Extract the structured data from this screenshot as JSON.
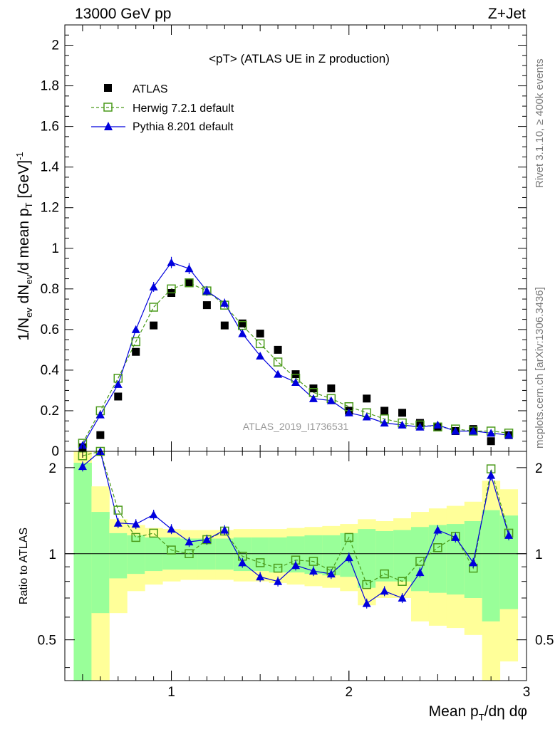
{
  "header": {
    "left": "13000 GeV pp",
    "right": "Z+Jet"
  },
  "side_labels": {
    "rivet": "Rivet 3.1.10, ≥ 400k events",
    "mcplots": "mcplots.cern.ch [arXiv:1306.3436]"
  },
  "chart_data": [
    {
      "type": "scatter",
      "title": "<pT> (ATLAS UE in Z production)",
      "watermark": "ATLAS_2019_I1736531",
      "ylabel_parts": [
        "1/N",
        "ev",
        " dN",
        "ev",
        "/d mean p",
        "T",
        " [GeV]",
        "-1"
      ],
      "xlim": [
        0.4,
        3.0
      ],
      "ylim": [
        0,
        2.1
      ],
      "yticks": [
        0,
        0.2,
        0.4,
        0.6,
        0.8,
        1,
        1.2,
        1.4,
        1.6,
        1.8,
        2
      ],
      "ytick_labels": [
        "0",
        "0.2",
        "0.4",
        "0.6",
        "0.8",
        "1",
        "1.2",
        "1.4",
        "1.6",
        "1.8",
        "2"
      ],
      "legend_position": "top-left",
      "series": [
        {
          "name": "ATLAS",
          "style": "square-filled",
          "color": "#000000",
          "x": [
            0.5,
            0.6,
            0.7,
            0.8,
            0.9,
            1.0,
            1.1,
            1.2,
            1.3,
            1.4,
            1.5,
            1.6,
            1.7,
            1.8,
            1.9,
            2.0,
            2.1,
            2.2,
            2.3,
            2.4,
            2.5,
            2.6,
            2.7,
            2.8,
            2.9
          ],
          "y": [
            0.02,
            0.08,
            0.27,
            0.49,
            0.62,
            0.78,
            0.83,
            0.72,
            0.62,
            0.63,
            0.58,
            0.5,
            0.38,
            0.31,
            0.31,
            0.2,
            0.26,
            0.2,
            0.19,
            0.14,
            0.12,
            0.1,
            0.11,
            0.05,
            0.08
          ]
        },
        {
          "name": "Herwig 7.2.1 default",
          "style": "square-open-dashed",
          "color": "#4a9a1a",
          "x": [
            0.5,
            0.6,
            0.7,
            0.8,
            0.9,
            1.0,
            1.1,
            1.2,
            1.3,
            1.4,
            1.5,
            1.6,
            1.7,
            1.8,
            1.9,
            2.0,
            2.1,
            2.2,
            2.3,
            2.4,
            2.5,
            2.6,
            2.7,
            2.8,
            2.9
          ],
          "y": [
            0.04,
            0.2,
            0.36,
            0.54,
            0.71,
            0.8,
            0.83,
            0.79,
            0.72,
            0.62,
            0.53,
            0.44,
            0.36,
            0.29,
            0.26,
            0.22,
            0.19,
            0.16,
            0.14,
            0.13,
            0.12,
            0.11,
            0.1,
            0.1,
            0.09
          ]
        },
        {
          "name": "Pythia 8.201 default",
          "style": "triangle-filled-solid",
          "color": "#0000dd",
          "x": [
            0.5,
            0.6,
            0.7,
            0.8,
            0.9,
            1.0,
            1.1,
            1.2,
            1.3,
            1.4,
            1.5,
            1.6,
            1.7,
            1.8,
            1.9,
            2.0,
            2.1,
            2.2,
            2.3,
            2.4,
            2.5,
            2.6,
            2.7,
            2.8,
            2.9
          ],
          "y": [
            0.03,
            0.18,
            0.33,
            0.6,
            0.81,
            0.93,
            0.9,
            0.79,
            0.73,
            0.58,
            0.47,
            0.38,
            0.34,
            0.26,
            0.25,
            0.19,
            0.17,
            0.14,
            0.13,
            0.12,
            0.13,
            0.1,
            0.1,
            0.09,
            0.08
          ]
        }
      ]
    },
    {
      "type": "scatter",
      "ylabel": "Ratio to ATLAS",
      "xlabel_parts": [
        "Mean p",
        "T",
        "/dη dφ"
      ],
      "xlim": [
        0.4,
        3.0
      ],
      "ylim": [
        0.36,
        2.28
      ],
      "xticks": [
        1,
        2,
        3
      ],
      "xtick_labels": [
        "1",
        "2",
        "3"
      ],
      "yticks": [
        0.5,
        1,
        2
      ],
      "ytick_labels": [
        "0.5",
        "1",
        "2"
      ],
      "reference_line": 1,
      "uncertainty_bands": {
        "edges": [
          0.45,
          0.55,
          0.65,
          0.75,
          0.85,
          0.95,
          1.05,
          1.15,
          1.25,
          1.35,
          1.45,
          1.55,
          1.65,
          1.75,
          1.85,
          1.95,
          2.05,
          2.15,
          2.25,
          2.35,
          2.45,
          2.55,
          2.65,
          2.75,
          2.85,
          2.95
        ],
        "outer_color": "#ffff99",
        "inner_color": "#99ff99",
        "outer_low": [
          0.36,
          0.36,
          0.62,
          0.74,
          0.78,
          0.8,
          0.81,
          0.81,
          0.81,
          0.8,
          0.8,
          0.79,
          0.78,
          0.77,
          0.76,
          0.74,
          0.66,
          0.7,
          0.7,
          0.58,
          0.56,
          0.55,
          0.52,
          0.36,
          0.42
        ],
        "outer_high": [
          2.28,
          1.72,
          1.32,
          1.26,
          1.23,
          1.22,
          1.21,
          1.21,
          1.21,
          1.22,
          1.22,
          1.22,
          1.23,
          1.24,
          1.25,
          1.27,
          1.32,
          1.3,
          1.33,
          1.4,
          1.44,
          1.47,
          1.52,
          1.8,
          1.68
        ],
        "inner_low": [
          0.36,
          0.62,
          0.82,
          0.85,
          0.87,
          0.88,
          0.88,
          0.88,
          0.88,
          0.87,
          0.87,
          0.86,
          0.86,
          0.85,
          0.84,
          0.83,
          0.76,
          0.8,
          0.8,
          0.74,
          0.73,
          0.72,
          0.7,
          0.58,
          0.64
        ],
        "inner_high": [
          2.08,
          1.4,
          1.18,
          1.16,
          1.14,
          1.14,
          1.13,
          1.13,
          1.13,
          1.14,
          1.14,
          1.14,
          1.15,
          1.16,
          1.16,
          1.18,
          1.22,
          1.2,
          1.21,
          1.24,
          1.26,
          1.27,
          1.3,
          1.42,
          1.36
        ]
      },
      "series": [
        {
          "name": "Herwig 7.2.1 default",
          "style": "square-open-dashed",
          "color": "#4a9a1a",
          "x": [
            0.5,
            0.6,
            0.7,
            0.8,
            0.9,
            1.0,
            1.1,
            1.2,
            1.3,
            1.4,
            1.5,
            1.6,
            1.7,
            1.8,
            1.9,
            2.0,
            2.1,
            2.2,
            2.3,
            2.4,
            2.5,
            2.6,
            2.7,
            2.8,
            2.9
          ],
          "y": [
            2.2,
            2.3,
            1.42,
            1.14,
            1.18,
            1.03,
            1.0,
            1.12,
            1.2,
            0.98,
            0.93,
            0.89,
            0.95,
            0.94,
            0.87,
            1.14,
            0.78,
            0.85,
            0.8,
            0.94,
            1.05,
            1.15,
            0.89,
            1.98,
            1.18
          ]
        },
        {
          "name": "Pythia 8.201 default",
          "style": "triangle-filled-solid",
          "color": "#0000dd",
          "x": [
            0.5,
            0.6,
            0.7,
            0.8,
            0.9,
            1.0,
            1.1,
            1.2,
            1.3,
            1.4,
            1.5,
            1.6,
            1.7,
            1.8,
            1.9,
            2.0,
            2.1,
            2.2,
            2.3,
            2.4,
            2.5,
            2.6,
            2.7,
            2.8,
            2.9
          ],
          "y": [
            2.02,
            2.3,
            1.28,
            1.27,
            1.37,
            1.22,
            1.1,
            1.12,
            1.21,
            0.93,
            0.83,
            0.8,
            0.91,
            0.87,
            0.85,
            0.97,
            0.67,
            0.74,
            0.7,
            0.86,
            1.21,
            1.14,
            0.93,
            1.88,
            1.16
          ]
        }
      ]
    }
  ]
}
